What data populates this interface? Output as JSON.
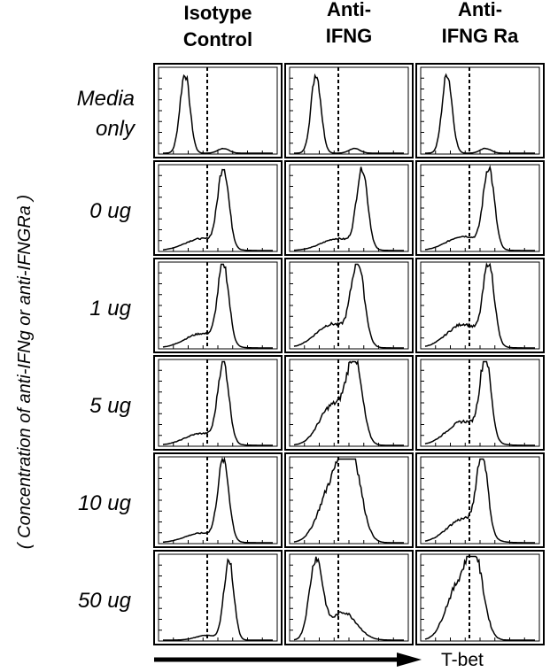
{
  "columns": [
    [
      "Isotype",
      "Control"
    ],
    [
      "Anti-",
      "IFNG"
    ],
    [
      "Anti-",
      "IFNG Ra"
    ]
  ],
  "rows": [
    [
      "Media",
      "only"
    ],
    [
      "0 ug"
    ],
    [
      "1 ug"
    ],
    [
      "5 ug"
    ],
    [
      "10 ug"
    ],
    [
      "50 ug"
    ]
  ],
  "y_label": "( Concentration of anti-IFNg or anti-IFNGRa )",
  "x_label": "T-bet"
}
